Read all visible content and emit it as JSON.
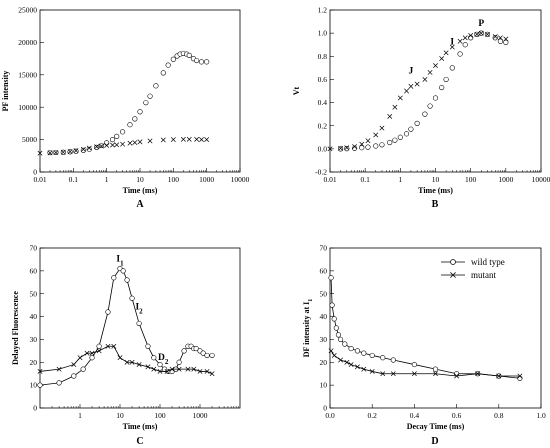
{
  "chart_data": [
    {
      "panel_label": "A",
      "type": "scatter",
      "xlabel": "Time (ms)",
      "ylabel": "PF intensity",
      "xscale": "log",
      "xlim": [
        0.01,
        10000
      ],
      "ylim": [
        0,
        25000
      ],
      "xticks": [
        0.01,
        0.1,
        1,
        10,
        100,
        1000,
        10000
      ],
      "xtick_labels": [
        "0.01",
        "0.1",
        "1",
        "10",
        "100",
        "1000",
        "10000"
      ],
      "yticks": [
        0,
        5000,
        10000,
        15000,
        20000,
        25000
      ],
      "ytick_labels": [
        "0",
        "5000",
        "10000",
        "15000",
        "20000",
        "25000"
      ],
      "series": [
        {
          "marker": "circle",
          "x": [
            0.02,
            0.03,
            0.05,
            0.08,
            0.12,
            0.2,
            0.3,
            0.5,
            0.7,
            1,
            1.5,
            2,
            3,
            5,
            7,
            10,
            15,
            20,
            30,
            50,
            70,
            100,
            130,
            160,
            200,
            250,
            300,
            400,
            500,
            700,
            1000
          ],
          "y": [
            3000,
            3020,
            3050,
            3120,
            3200,
            3350,
            3500,
            3800,
            4100,
            4500,
            5000,
            5500,
            6200,
            7300,
            8200,
            9300,
            10700,
            11700,
            13300,
            15300,
            16500,
            17400,
            17900,
            18200,
            18300,
            18200,
            18000,
            17500,
            17200,
            17000,
            17000
          ]
        },
        {
          "marker": "x",
          "x": [
            0.01,
            0.02,
            0.03,
            0.05,
            0.08,
            0.12,
            0.2,
            0.3,
            0.5,
            0.7,
            1,
            1.5,
            2,
            3,
            5,
            7,
            10,
            20,
            50,
            100,
            200,
            300,
            500,
            700,
            1000
          ],
          "y": [
            2900,
            2950,
            3000,
            3050,
            3150,
            3300,
            3500,
            3700,
            3900,
            4000,
            4100,
            4150,
            4200,
            4300,
            4450,
            4550,
            4650,
            4800,
            4950,
            5000,
            5050,
            5050,
            5050,
            5000,
            5000
          ]
        }
      ]
    },
    {
      "panel_label": "B",
      "type": "scatter",
      "xlabel": "Time (ms)",
      "ylabel": "Vt",
      "xscale": "log",
      "xlim": [
        0.01,
        10000
      ],
      "ylim": [
        -0.2,
        1.2
      ],
      "xticks": [
        0.01,
        0.1,
        1,
        10,
        100,
        1000,
        10000
      ],
      "xtick_labels": [
        "0.01",
        "0.1",
        "1",
        "10",
        "100",
        "1000",
        "10000"
      ],
      "yticks": [
        -0.2,
        0,
        0.2,
        0.4,
        0.6,
        0.8,
        1.0,
        1.2
      ],
      "ytick_labels": [
        "-0.2",
        "0.0",
        "0.2",
        "0.4",
        "0.6",
        "0.8",
        "1.0",
        "1.2"
      ],
      "annotations": [
        {
          "text": "J",
          "x": 2,
          "y": 0.65
        },
        {
          "text": "I",
          "x": 30,
          "y": 0.9
        },
        {
          "text": "P",
          "x": 200,
          "y": 1.06
        }
      ],
      "series": [
        {
          "marker": "circle",
          "x": [
            0.02,
            0.03,
            0.05,
            0.08,
            0.12,
            0.2,
            0.3,
            0.5,
            0.7,
            1,
            1.5,
            2,
            3,
            5,
            7,
            10,
            15,
            20,
            30,
            50,
            70,
            100,
            150,
            200,
            300,
            500,
            700,
            1000
          ],
          "y": [
            0,
            0.002,
            0.005,
            0.01,
            0.015,
            0.025,
            0.035,
            0.055,
            0.075,
            0.1,
            0.13,
            0.17,
            0.22,
            0.3,
            0.37,
            0.44,
            0.53,
            0.6,
            0.7,
            0.82,
            0.9,
            0.96,
            0.99,
            1.0,
            0.99,
            0.96,
            0.93,
            0.92
          ]
        },
        {
          "marker": "x",
          "x": [
            0.01,
            0.02,
            0.03,
            0.05,
            0.08,
            0.12,
            0.2,
            0.3,
            0.5,
            0.7,
            1,
            1.5,
            2,
            3,
            5,
            7,
            10,
            15,
            20,
            30,
            50,
            70,
            100,
            150,
            200,
            300,
            500,
            700,
            1000
          ],
          "y": [
            0,
            0.005,
            0.01,
            0.02,
            0.04,
            0.07,
            0.12,
            0.18,
            0.28,
            0.36,
            0.44,
            0.5,
            0.54,
            0.56,
            0.6,
            0.66,
            0.72,
            0.78,
            0.83,
            0.88,
            0.93,
            0.96,
            0.98,
            0.99,
            1.0,
            0.99,
            0.97,
            0.96,
            0.95
          ]
        }
      ]
    },
    {
      "panel_label": "C",
      "type": "line",
      "xlabel": "Time (ms)",
      "ylabel": "Delayed Fluorescence",
      "xscale": "log",
      "xlim": [
        0.1,
        10000
      ],
      "ylim": [
        0,
        70
      ],
      "xticks": [
        1,
        10,
        100,
        1000
      ],
      "xtick_labels": [
        "1",
        "10",
        "100",
        "1000"
      ],
      "yticks": [
        0,
        10,
        20,
        30,
        40,
        50,
        60,
        70
      ],
      "ytick_labels": [
        "0",
        "10",
        "20",
        "30",
        "40",
        "50",
        "60",
        "70"
      ],
      "annotations": [
        {
          "text": "I",
          "sub": "1",
          "x": 10,
          "y": 64
        },
        {
          "text": "I",
          "sub": "2",
          "x": 30,
          "y": 43
        },
        {
          "text": "D",
          "sub": "2",
          "x": 120,
          "y": 21
        }
      ],
      "series": [
        {
          "marker": "circle",
          "x": [
            0.1,
            0.3,
            0.7,
            1.2,
            2,
            3,
            5,
            7,
            10,
            12,
            15,
            20,
            30,
            50,
            70,
            100,
            130,
            160,
            200,
            250,
            300,
            400,
            500,
            600,
            700,
            800,
            1000,
            1200,
            1500,
            2000
          ],
          "y": [
            10,
            11,
            14,
            17,
            22,
            27,
            42,
            57,
            61,
            60,
            56,
            48,
            37,
            27,
            22,
            19,
            17,
            16,
            16,
            17,
            20,
            25,
            27,
            27,
            26,
            26,
            25,
            24,
            23,
            23
          ]
        },
        {
          "marker": "x",
          "x": [
            0.1,
            0.3,
            0.7,
            1,
            1.5,
            2,
            3,
            5,
            7,
            10,
            15,
            20,
            30,
            50,
            70,
            100,
            150,
            200,
            300,
            500,
            700,
            1000,
            1500,
            2000
          ],
          "y": [
            16,
            17,
            19,
            22,
            24,
            24,
            25,
            27,
            27,
            22,
            20,
            20,
            19,
            18,
            17,
            16,
            16,
            17,
            17,
            17,
            17,
            16,
            16,
            15
          ]
        }
      ]
    },
    {
      "panel_label": "D",
      "type": "line",
      "xlabel": "Decay Time (ms)",
      "ylabel": "DF intensity at I",
      "ylabel_sub": "1",
      "xlim": [
        0,
        1.0
      ],
      "ylim": [
        0,
        70
      ],
      "xticks": [
        0,
        0.2,
        0.4,
        0.6,
        0.8,
        1.0
      ],
      "xtick_labels": [
        "0.0",
        "0.2",
        "0.4",
        "0.6",
        "0.8",
        "1.0"
      ],
      "yticks": [
        0,
        10,
        20,
        30,
        40,
        50,
        60,
        70
      ],
      "ytick_labels": [
        "0",
        "10",
        "20",
        "30",
        "40",
        "50",
        "60",
        "70"
      ],
      "legend_position": "top-right",
      "series": [
        {
          "name": "wild type",
          "marker": "circle",
          "x": [
            0.005,
            0.01,
            0.02,
            0.03,
            0.04,
            0.05,
            0.07,
            0.1,
            0.13,
            0.16,
            0.2,
            0.25,
            0.3,
            0.4,
            0.5,
            0.6,
            0.7,
            0.8,
            0.9
          ],
          "y": [
            57,
            45,
            39,
            35,
            32,
            30,
            28,
            26,
            25,
            24,
            23,
            22,
            21,
            19,
            17,
            15,
            15,
            14,
            13
          ]
        },
        {
          "name": "mutant",
          "marker": "x",
          "x": [
            0.005,
            0.02,
            0.05,
            0.08,
            0.1,
            0.13,
            0.16,
            0.2,
            0.25,
            0.3,
            0.4,
            0.5,
            0.6,
            0.7,
            0.8,
            0.9
          ],
          "y": [
            25,
            23,
            21,
            20,
            19,
            18,
            17,
            16,
            15,
            15,
            15,
            15,
            14,
            15,
            14,
            14
          ]
        }
      ]
    }
  ]
}
